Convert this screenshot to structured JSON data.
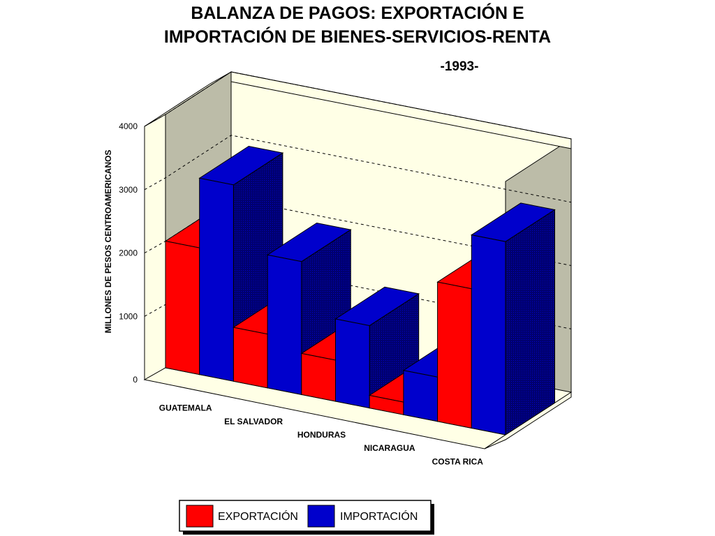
{
  "chart_data": {
    "type": "bar",
    "title_line1": "BALANZA DE PAGOS: EXPORTACIÓN E",
    "title_line2": "IMPORTACIÓN DE BIENES-SERVICIOS-RENTA",
    "subtitle": "-1993-",
    "ylabel": "MILLONES DE PESOS CENTROAMERICANOS",
    "xlabel": "",
    "ylim": [
      0,
      4000
    ],
    "yticks": [
      0,
      1000,
      2000,
      3000,
      4000
    ],
    "grid": true,
    "three_d": true,
    "legend_position": "bottom-center",
    "categories": [
      "GUATEMALA",
      "EL SALVADOR",
      "HONDURAS",
      "NICARAGUA",
      "COSTA RICA"
    ],
    "series": [
      {
        "name": "EXPORTACIÓN",
        "color": "#ff0000",
        "values": [
          2000,
          850,
          650,
          200,
          2200
        ]
      },
      {
        "name": "IMPORTACIÓN",
        "color": "#0000cc",
        "values": [
          3100,
          2100,
          1300,
          700,
          3050
        ]
      }
    ]
  }
}
